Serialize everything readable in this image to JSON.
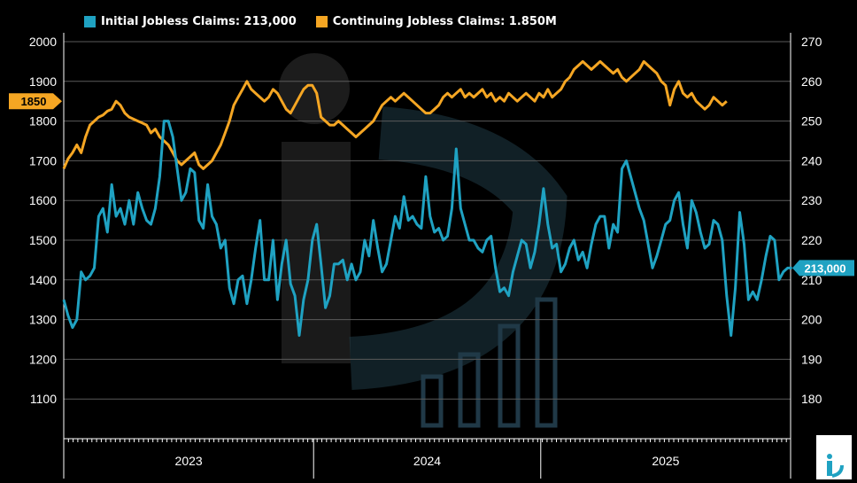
{
  "chart_data": {
    "type": "line",
    "x_label": "",
    "x_ticks": [
      "2023",
      "2024",
      "2025"
    ],
    "grid": true,
    "legend_position": "top-left",
    "left_axis": {
      "ylim": [
        1000,
        2000
      ],
      "ticks": [
        1100,
        1200,
        1300,
        1400,
        1500,
        1600,
        1700,
        1800,
        1900,
        2000
      ],
      "current_value_label": "1850",
      "label_color": "#f5a623"
    },
    "right_axis": {
      "ylim": [
        170,
        270
      ],
      "ticks": [
        180,
        190,
        200,
        210,
        220,
        230,
        240,
        250,
        260,
        270
      ],
      "current_value_label": "213,000",
      "label_color": "#1fa2c2"
    },
    "series": [
      {
        "name": "Initial Jobless Claims: 213,000",
        "axis": "right",
        "color": "#1fa2c2",
        "x_start": 2022.9,
        "x_step": 0.0192,
        "values": [
          205,
          201,
          198,
          200,
          212,
          210,
          211,
          213,
          226,
          228,
          222,
          234,
          226,
          228,
          224,
          230,
          224,
          232,
          228,
          225,
          224,
          228,
          236,
          250,
          250,
          246,
          238,
          230,
          232,
          238,
          237,
          225,
          223,
          234,
          226,
          224,
          218,
          220,
          208,
          204,
          210,
          211,
          204,
          210,
          218,
          225,
          210,
          210,
          220,
          205,
          214,
          220,
          209,
          206,
          196,
          205,
          210,
          220,
          224,
          214,
          203,
          206,
          214,
          214,
          215,
          210,
          214,
          210,
          212,
          220,
          216,
          225,
          218,
          212,
          214,
          220,
          226,
          223,
          231,
          225,
          226,
          224,
          223,
          236,
          226,
          222,
          223,
          220,
          221,
          228,
          243,
          228,
          224,
          220,
          220,
          218,
          217,
          220,
          221,
          213,
          207,
          208,
          206,
          212,
          216,
          220,
          219,
          213,
          217,
          224,
          233,
          224,
          218,
          219,
          212,
          214,
          218,
          220,
          215,
          217,
          213,
          219,
          224,
          226,
          226,
          218,
          224,
          222,
          238,
          240,
          236,
          232,
          228,
          225,
          219,
          213,
          216,
          220,
          224,
          225,
          230,
          232,
          224,
          218,
          230,
          227,
          222,
          218,
          219,
          225,
          224,
          220,
          206,
          196,
          208,
          227,
          219,
          205,
          207,
          205,
          210,
          216,
          221,
          220,
          210,
          212,
          213,
          213
        ]
      },
      {
        "name": "Continuing Jobless Claims: 1.850M",
        "axis": "left",
        "color": "#f5a623",
        "x_start": 2022.9,
        "x_step": 0.0192,
        "values": [
          1680,
          1705,
          1720,
          1740,
          1720,
          1760,
          1790,
          1800,
          1810,
          1815,
          1825,
          1830,
          1850,
          1840,
          1820,
          1810,
          1805,
          1800,
          1795,
          1790,
          1770,
          1780,
          1760,
          1750,
          1740,
          1720,
          1700,
          1690,
          1700,
          1710,
          1720,
          1690,
          1680,
          1690,
          1700,
          1720,
          1740,
          1770,
          1800,
          1840,
          1860,
          1880,
          1900,
          1880,
          1870,
          1860,
          1850,
          1860,
          1880,
          1870,
          1850,
          1830,
          1820,
          1840,
          1860,
          1880,
          1890,
          1890,
          1870,
          1810,
          1800,
          1790,
          1790,
          1800,
          1790,
          1780,
          1770,
          1760,
          1770,
          1780,
          1790,
          1800,
          1820,
          1840,
          1850,
          1860,
          1850,
          1860,
          1870,
          1860,
          1850,
          1840,
          1830,
          1820,
          1820,
          1830,
          1840,
          1860,
          1870,
          1860,
          1870,
          1880,
          1860,
          1870,
          1860,
          1870,
          1880,
          1860,
          1870,
          1850,
          1860,
          1850,
          1870,
          1860,
          1850,
          1860,
          1870,
          1860,
          1850,
          1870,
          1860,
          1880,
          1860,
          1870,
          1880,
          1900,
          1910,
          1930,
          1940,
          1950,
          1940,
          1930,
          1940,
          1950,
          1940,
          1930,
          1920,
          1930,
          1910,
          1900,
          1910,
          1920,
          1930,
          1950,
          1940,
          1930,
          1920,
          1900,
          1890,
          1840,
          1880,
          1900,
          1870,
          1860,
          1870,
          1850,
          1840,
          1830,
          1840,
          1860,
          1850,
          1840,
          1850
        ]
      }
    ]
  }
}
